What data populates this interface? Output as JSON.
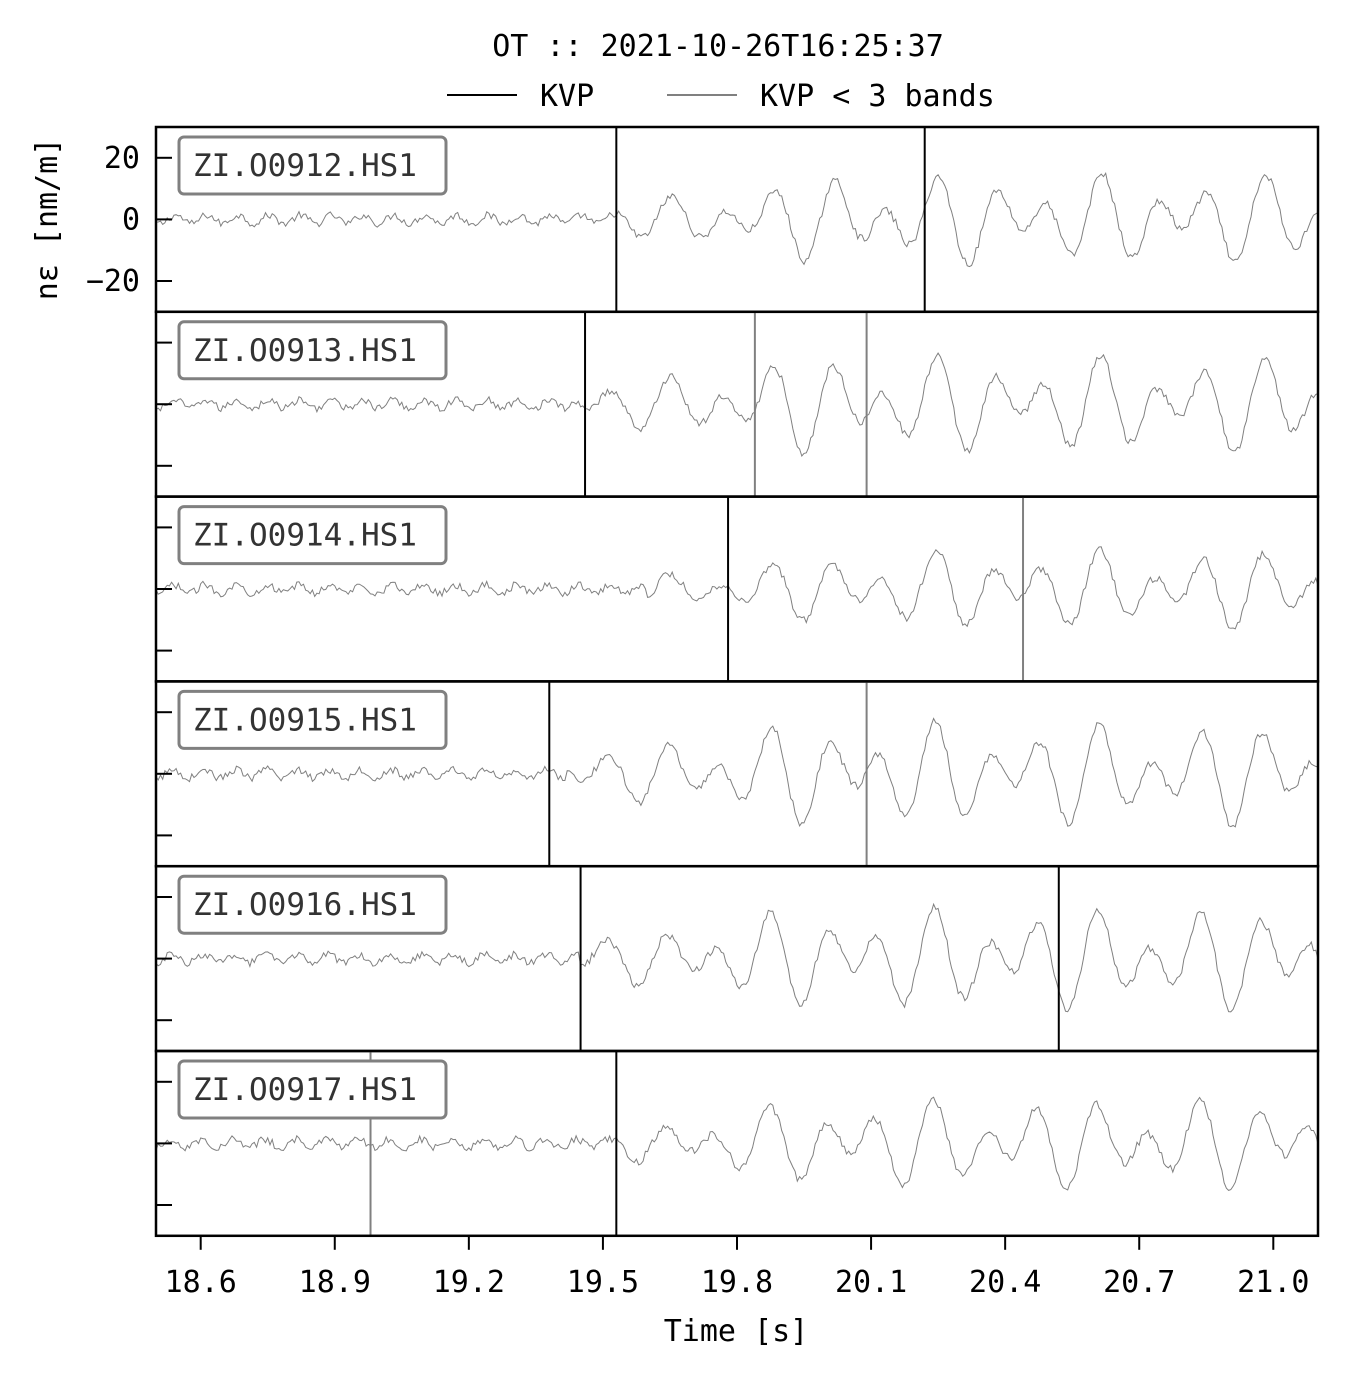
{
  "chart_data": {
    "type": "line",
    "title": "OT :: 2021-10-26T16:25:37",
    "xlabel": "Time [s]",
    "ylabel": "nε [nm/m]",
    "xlim": [
      18.5,
      21.1
    ],
    "ylim": [
      -30,
      30
    ],
    "xticks": [
      "18.6",
      "18.9",
      "19.2",
      "19.5",
      "19.8",
      "20.1",
      "20.4",
      "20.7",
      "21.0"
    ],
    "yticks": [
      "20",
      "0",
      "−20"
    ],
    "legend": {
      "placement": "top-center",
      "entries": [
        {
          "label": "KVP",
          "color": "#000000"
        },
        {
          "label": "KVP < 3 bands",
          "color": "#808080"
        }
      ]
    },
    "trace_color": "#808080",
    "panels": [
      {
        "station": "ZI.O0912.HS1",
        "kvp": [
          19.53,
          20.22
        ],
        "kvp_lt3": [],
        "onset": 19.53,
        "amp": 15
      },
      {
        "station": "ZI.O0913.HS1",
        "kvp": [
          19.46
        ],
        "kvp_lt3": [
          19.84,
          20.09
        ],
        "onset": 19.45,
        "amp": 16
      },
      {
        "station": "ZI.O0914.HS1",
        "kvp": [
          19.78
        ],
        "kvp_lt3": [
          20.44
        ],
        "onset": 19.6,
        "amp": 13
      },
      {
        "station": "ZI.O0915.HS1",
        "kvp": [
          19.38
        ],
        "kvp_lt3": [
          20.09
        ],
        "onset": 19.42,
        "amp": 17
      },
      {
        "station": "ZI.O0916.HS1",
        "kvp": [
          19.45,
          20.52
        ],
        "kvp_lt3": [],
        "onset": 19.45,
        "amp": 17
      },
      {
        "station": "ZI.O0917.HS1",
        "kvp": [
          19.53
        ],
        "kvp_lt3": [
          18.98
        ],
        "onset": 19.53,
        "amp": 15
      }
    ]
  }
}
